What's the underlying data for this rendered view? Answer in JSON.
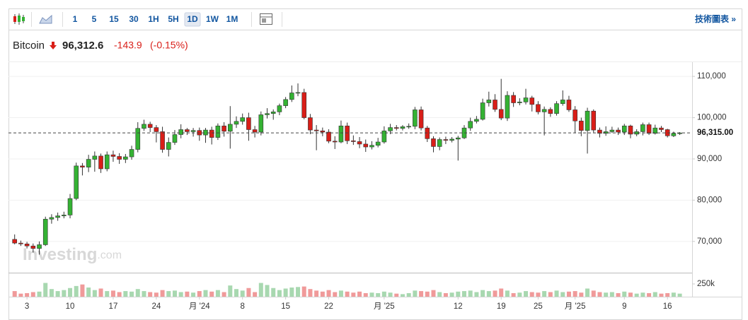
{
  "toolbar": {
    "intervals": [
      "1",
      "5",
      "15",
      "30",
      "1H",
      "5H",
      "1D",
      "1W",
      "1M"
    ],
    "selected": "1D",
    "link": "技術圖表 »"
  },
  "header": {
    "name": "Bitcoin",
    "price": "96,312.6",
    "change": "-143.9",
    "change_pct": "(-0.15%)"
  },
  "chart_data": {
    "type": "candlestick",
    "watermark_brand": "Investing",
    "watermark_suffix": ".com",
    "open": [
      70500,
      69600,
      69400,
      68900,
      68300,
      69200,
      75400,
      75800,
      76200,
      76400,
      80400,
      88300,
      88000,
      89900,
      90700,
      87600,
      91000,
      90600,
      89900,
      90500,
      92300,
      97400,
      98400,
      97600,
      96600,
      92300,
      94000,
      95900,
      97100,
      96600,
      96900,
      95800,
      97000,
      95200,
      98000,
      96700,
      98400,
      99100,
      100000,
      97100,
      96500,
      100700,
      101000,
      101400,
      102900,
      104400,
      106000,
      106100,
      100000,
      97000,
      96800,
      96500,
      94300,
      94100,
      98000,
      94400,
      94200,
      93600,
      92900,
      93300,
      94100,
      96800,
      97600,
      97400,
      97800,
      97900,
      101900,
      97500,
      94900,
      93000,
      94700,
      94500,
      94800,
      95100,
      97500,
      99100,
      99600,
      103600,
      104300,
      102000,
      99900,
      105400,
      103600,
      103800,
      104800,
      103200,
      101400,
      102000,
      101000,
      103400,
      104300,
      101900,
      99200,
      96900,
      101600,
      97000,
      96200,
      96600,
      97000,
      96500,
      98000,
      96000,
      96600,
      98300,
      96200,
      97500,
      97100,
      95600,
      96200
    ],
    "high": [
      71700,
      70200,
      69900,
      69500,
      70000,
      76000,
      76600,
      77000,
      77200,
      81500,
      89100,
      89000,
      91000,
      91800,
      91300,
      91800,
      92000,
      91400,
      91200,
      93200,
      98900,
      99500,
      99000,
      98200,
      97800,
      95200,
      97000,
      98400,
      97500,
      97500,
      97600,
      97500,
      97800,
      98600,
      98900,
      102800,
      100300,
      101000,
      101200,
      98000,
      101500,
      102300,
      102000,
      103400,
      105000,
      107800,
      108300,
      107000,
      100900,
      98200,
      97600,
      97200,
      95500,
      99300,
      98800,
      95700,
      95300,
      94700,
      94300,
      95100,
      97900,
      98500,
      98200,
      98200,
      98600,
      102600,
      102700,
      98000,
      95500,
      95200,
      95400,
      95300,
      95600,
      98200,
      100000,
      100400,
      104600,
      106300,
      105700,
      109400,
      106400,
      106200,
      104700,
      107000,
      105300,
      104000,
      102700,
      102500,
      104000,
      106600,
      105300,
      102800,
      100000,
      102400,
      102000,
      97600,
      97900,
      97800,
      97600,
      98500,
      98300,
      97200,
      98800,
      98800,
      98300,
      98000,
      97300,
      96600,
      96500
    ],
    "low": [
      69300,
      68900,
      68300,
      67300,
      66800,
      68900,
      74300,
      75000,
      75600,
      75600,
      80000,
      86000,
      86800,
      86900,
      86600,
      87000,
      89300,
      88800,
      89000,
      89800,
      91600,
      96800,
      96500,
      94000,
      91500,
      90600,
      93400,
      95000,
      95800,
      95400,
      94400,
      93900,
      93500,
      94600,
      95400,
      92500,
      97500,
      98300,
      94400,
      95200,
      95700,
      99800,
      99500,
      100600,
      102300,
      103800,
      105200,
      99600,
      96000,
      92100,
      95500,
      93800,
      92400,
      93800,
      93600,
      93400,
      92600,
      91700,
      92300,
      92800,
      93700,
      96000,
      96900,
      96900,
      97300,
      97200,
      96900,
      94100,
      91600,
      92100,
      93600,
      94000,
      89600,
      94800,
      96800,
      98600,
      99300,
      102700,
      101400,
      99400,
      99200,
      102600,
      103000,
      103200,
      101500,
      100800,
      95700,
      100200,
      100500,
      102900,
      101400,
      96300,
      95500,
      91300,
      96400,
      95200,
      95600,
      96300,
      95800,
      95800,
      95000,
      95500,
      95700,
      95800,
      95900,
      96500,
      95200,
      95300,
      95800
    ],
    "close": [
      69600,
      69400,
      68900,
      68300,
      69200,
      75400,
      75800,
      76200,
      76400,
      80400,
      88300,
      88000,
      89900,
      90700,
      87600,
      91000,
      90600,
      89900,
      90500,
      92300,
      97400,
      98400,
      97600,
      96600,
      92300,
      94000,
      95900,
      97100,
      96600,
      96900,
      95800,
      97000,
      95200,
      98000,
      96700,
      98400,
      99100,
      100000,
      97100,
      96500,
      100700,
      101000,
      101400,
      102900,
      104400,
      106000,
      106100,
      100000,
      97000,
      96800,
      96500,
      94300,
      94100,
      98000,
      94400,
      94200,
      93600,
      92900,
      93300,
      94100,
      96800,
      97600,
      97400,
      97800,
      97900,
      101900,
      97500,
      94900,
      93000,
      94700,
      94500,
      94800,
      95100,
      97500,
      99100,
      99600,
      103600,
      104300,
      102000,
      99900,
      105400,
      103600,
      103800,
      104800,
      103200,
      101400,
      102000,
      101000,
      103400,
      104300,
      101900,
      99200,
      96900,
      101600,
      97000,
      96200,
      96600,
      97000,
      96500,
      98000,
      96000,
      96600,
      98300,
      96200,
      97500,
      97100,
      95600,
      96200,
      96300
    ],
    "volume": [
      110000,
      60000,
      70000,
      90000,
      100000,
      270000,
      150000,
      110000,
      130000,
      170000,
      210000,
      240000,
      180000,
      130000,
      160000,
      110000,
      120000,
      90000,
      110000,
      100000,
      150000,
      110000,
      90000,
      80000,
      130000,
      110000,
      120000,
      90000,
      100000,
      80000,
      110000,
      130000,
      100000,
      130000,
      90000,
      220000,
      150000,
      120000,
      170000,
      90000,
      270000,
      230000,
      170000,
      130000,
      160000,
      180000,
      190000,
      200000,
      150000,
      120000,
      100000,
      130000,
      90000,
      120000,
      100000,
      80000,
      100000,
      70000,
      80000,
      70000,
      100000,
      80000,
      60000,
      50000,
      70000,
      120000,
      110000,
      100000,
      130000,
      90000,
      70000,
      80000,
      100000,
      110000,
      120000,
      90000,
      130000,
      110000,
      120000,
      160000,
      120000,
      70000,
      80000,
      110000,
      90000,
      80000,
      110000,
      90000,
      120000,
      90000,
      100000,
      110000,
      80000,
      160000,
      120000,
      90000,
      80000,
      90000,
      70000,
      100000,
      80000,
      60000,
      80000,
      70000,
      90000,
      60000,
      70000,
      80000,
      60000
    ],
    "up_color": "#34b233",
    "down_color": "#d91e18",
    "up_volume_color": "#a8d8b0",
    "down_volume_color": "#f09a9a",
    "xlim": [
      -1,
      110
    ],
    "xticks": [
      {
        "value": 2,
        "label": "3"
      },
      {
        "value": 9,
        "label": "10"
      },
      {
        "value": 16,
        "label": "17"
      },
      {
        "value": 23,
        "label": "24"
      },
      {
        "value": 30,
        "label": "月 '24"
      },
      {
        "value": 37,
        "label": "8"
      },
      {
        "value": 44,
        "label": "15"
      },
      {
        "value": 51,
        "label": "22"
      },
      {
        "value": 60,
        "label": "月 '25"
      },
      {
        "value": 72,
        "label": "12"
      },
      {
        "value": 79,
        "label": "19"
      },
      {
        "value": 85,
        "label": "25"
      },
      {
        "value": 91,
        "label": "月 '25"
      },
      {
        "value": 99,
        "label": "9"
      },
      {
        "value": 106,
        "label": "16"
      }
    ],
    "ylim": [
      62600,
      113450
    ],
    "yticks": [
      {
        "value": 70000,
        "label": "70,000"
      },
      {
        "value": 80000,
        "label": "80,000"
      },
      {
        "value": 90000,
        "label": "90,000"
      },
      {
        "value": 100000,
        "label": "100,000"
      },
      {
        "value": 110000,
        "label": "110,000"
      }
    ],
    "last_price": {
      "value": 96315,
      "label": "96,315.00"
    },
    "vlim": [
      0,
      444000
    ],
    "vticks": [
      {
        "value": 250000,
        "label": "250k"
      }
    ],
    "grid": true
  }
}
